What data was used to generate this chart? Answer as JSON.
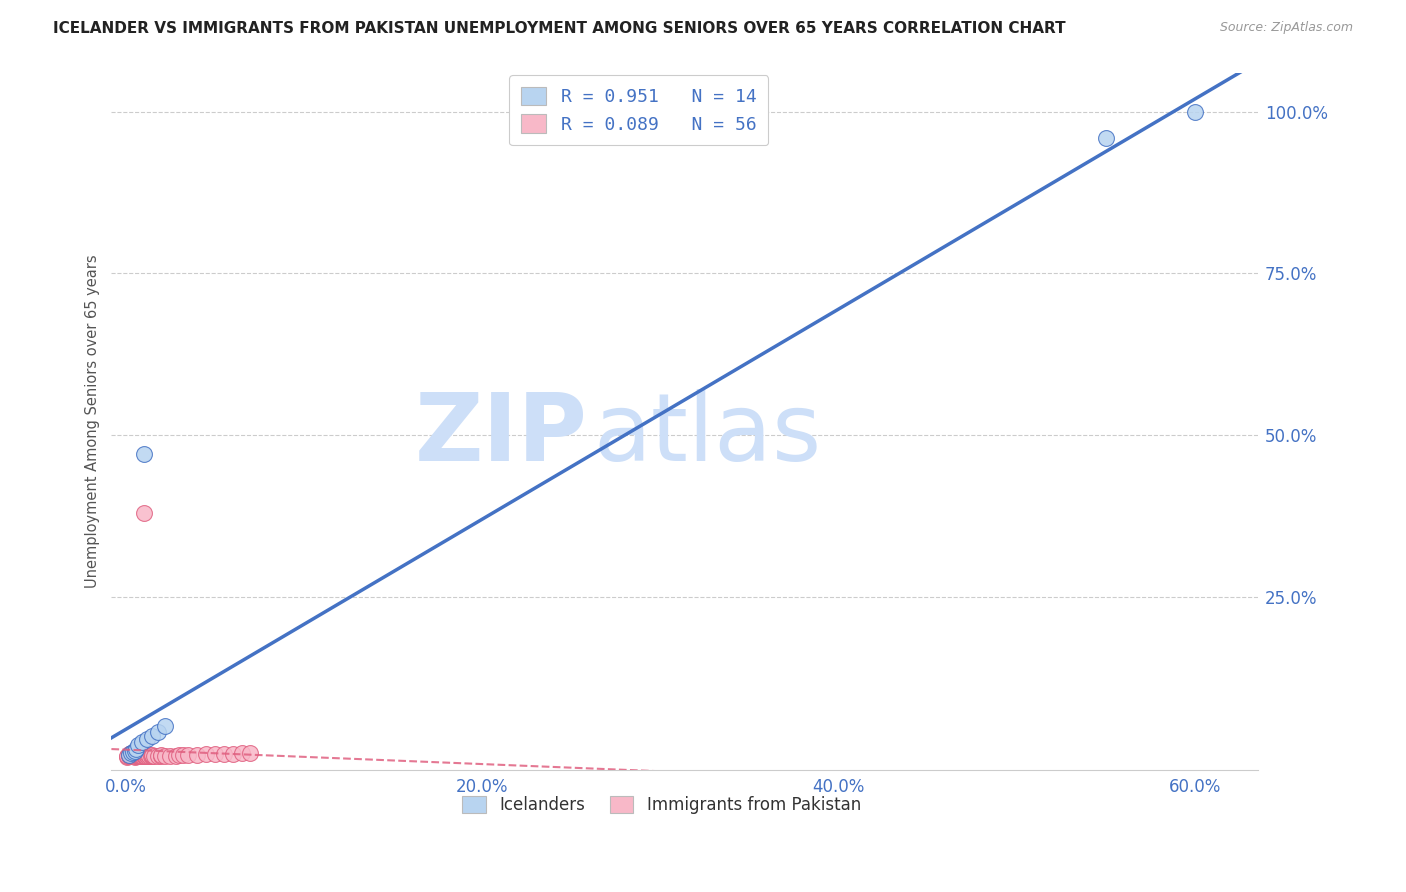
{
  "title": "ICELANDER VS IMMIGRANTS FROM PAKISTAN UNEMPLOYMENT AMONG SENIORS OVER 65 YEARS CORRELATION CHART",
  "source": "Source: ZipAtlas.com",
  "ylabel": "Unemployment Among Seniors over 65 years",
  "xlabel_ticks": [
    "0.0%",
    "20.0%",
    "40.0%",
    "60.0%"
  ],
  "xlabel_vals": [
    0.0,
    0.2,
    0.4,
    0.6
  ],
  "right_ytick_labels": [
    "100.0%",
    "75.0%",
    "50.0%",
    "25.0%"
  ],
  "right_ytick_vals": [
    1.0,
    0.75,
    0.5,
    0.25
  ],
  "grid_yvals": [
    0.25,
    0.5,
    0.75,
    1.0
  ],
  "xmin": -0.008,
  "xmax": 0.635,
  "ymin": -0.018,
  "ymax": 1.06,
  "icelanders_R": "0.951",
  "icelanders_N": "14",
  "pakistan_R": "0.089",
  "pakistan_N": "56",
  "legend_label_blue": "Icelanders",
  "legend_label_pink": "Immigrants from Pakistan",
  "scatter_blue_color": "#b8d4f0",
  "scatter_pink_color": "#f8b8c8",
  "line_blue_color": "#4472c4",
  "line_pink_color": "#e06080",
  "watermark_color": "#cddff8",
  "watermark_text_bold": "ZIP",
  "watermark_text_light": "atlas",
  "background_color": "#ffffff",
  "grid_color": "#cccccc",
  "title_color": "#222222",
  "axis_color": "#4472c4",
  "blue_x": [
    0.002,
    0.003,
    0.004,
    0.005,
    0.006,
    0.007,
    0.009,
    0.012,
    0.015,
    0.018,
    0.01,
    0.55,
    0.6,
    0.022
  ],
  "blue_y": [
    0.005,
    0.008,
    0.01,
    0.012,
    0.015,
    0.02,
    0.025,
    0.03,
    0.035,
    0.04,
    0.47,
    0.96,
    1.0,
    0.05
  ],
  "pink_x": [
    0.001,
    0.001,
    0.002,
    0.002,
    0.002,
    0.003,
    0.003,
    0.003,
    0.003,
    0.004,
    0.004,
    0.004,
    0.005,
    0.005,
    0.005,
    0.005,
    0.006,
    0.006,
    0.006,
    0.007,
    0.007,
    0.007,
    0.008,
    0.008,
    0.008,
    0.009,
    0.009,
    0.01,
    0.01,
    0.01,
    0.011,
    0.011,
    0.012,
    0.012,
    0.013,
    0.014,
    0.015,
    0.015,
    0.016,
    0.018,
    0.02,
    0.02,
    0.022,
    0.025,
    0.028,
    0.03,
    0.032,
    0.035,
    0.04,
    0.045,
    0.05,
    0.055,
    0.06,
    0.065,
    0.07,
    0.01
  ],
  "pink_y": [
    0.002,
    0.004,
    0.003,
    0.005,
    0.007,
    0.003,
    0.005,
    0.007,
    0.009,
    0.003,
    0.005,
    0.008,
    0.002,
    0.004,
    0.006,
    0.008,
    0.003,
    0.005,
    0.007,
    0.003,
    0.005,
    0.007,
    0.003,
    0.005,
    0.007,
    0.003,
    0.006,
    0.003,
    0.005,
    0.007,
    0.003,
    0.006,
    0.003,
    0.006,
    0.004,
    0.004,
    0.003,
    0.005,
    0.004,
    0.004,
    0.003,
    0.005,
    0.004,
    0.004,
    0.004,
    0.005,
    0.005,
    0.005,
    0.005,
    0.006,
    0.006,
    0.007,
    0.007,
    0.008,
    0.008,
    0.38
  ]
}
